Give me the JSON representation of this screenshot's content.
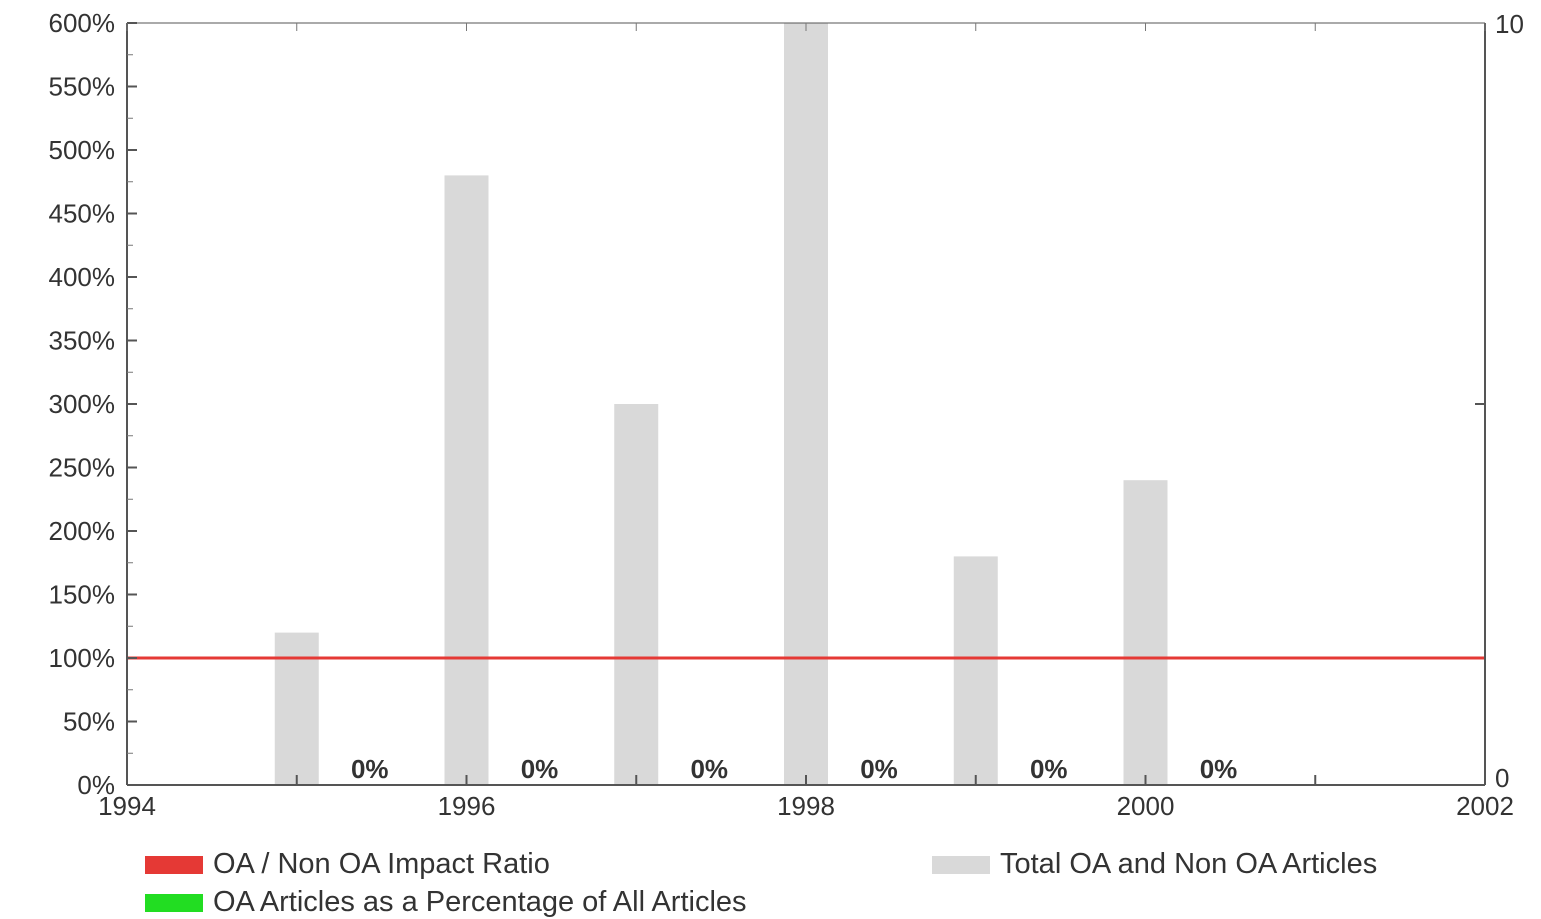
{
  "chart_data": {
    "type": "bar",
    "x_ticks": [
      "1994",
      "1996",
      "1998",
      "2000",
      "2002"
    ],
    "y_ticks_left": [
      "0%",
      "50%",
      "100%",
      "150%",
      "200%",
      "250%",
      "300%",
      "350%",
      "400%",
      "450%",
      "500%",
      "550%",
      "600%"
    ],
    "y_ticks_right": [
      "0",
      "10"
    ],
    "xlim": [
      1994,
      2002
    ],
    "ylim_left": [
      0,
      600
    ],
    "ylim_right": [
      0,
      10
    ],
    "grid": false,
    "legend_position": "bottom",
    "series": [
      {
        "name": "OA / Non OA Impact Ratio",
        "type": "line",
        "axis": "left",
        "color": "#e53935",
        "x": [
          1994,
          2002
        ],
        "values": [
          100,
          100
        ]
      },
      {
        "name": "OA Articles as a Percentage of All Articles",
        "type": "bar",
        "axis": "left",
        "color": "#22dd22",
        "x": [
          1995,
          1996,
          1997,
          1998,
          1999,
          2000
        ],
        "values": [
          0,
          0,
          0,
          0,
          0,
          0
        ],
        "labels": [
          "0%",
          "0%",
          "0%",
          "0%",
          "0%",
          "0%"
        ]
      },
      {
        "name": "Total OA and Non OA Articles",
        "type": "bar",
        "axis": "right",
        "color": "#d9d9d9",
        "x": [
          1995,
          1996,
          1997,
          1998,
          1999,
          2000
        ],
        "values": [
          2,
          8,
          5,
          10,
          3,
          4
        ]
      }
    ]
  }
}
